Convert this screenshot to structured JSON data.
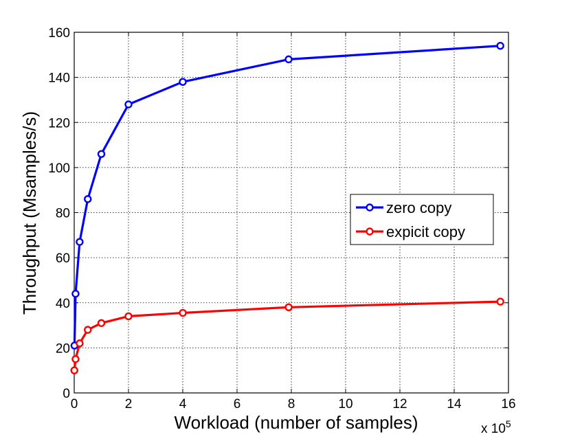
{
  "chart_data": {
    "type": "line",
    "title": "",
    "xlabel": "Workload (number of samples)",
    "ylabel": "Throughput (Msamples/s)",
    "x_multiplier_label": "x 10",
    "x_multiplier_exponent": "5",
    "xlim": [
      0,
      16
    ],
    "ylim": [
      0,
      160
    ],
    "xticks": [
      "0",
      "2",
      "4",
      "6",
      "8",
      "10",
      "12",
      "14",
      "16"
    ],
    "yticks": [
      "0",
      "20",
      "40",
      "60",
      "80",
      "100",
      "120",
      "140",
      "160"
    ],
    "grid": true,
    "legend_position": "center-right",
    "series": [
      {
        "name": "zero copy",
        "color": "#0000ff",
        "x": [
          0.01,
          0.05,
          0.2,
          0.5,
          1.0,
          2.0,
          4.0,
          7.9,
          15.7
        ],
        "y": [
          21,
          44,
          67,
          86,
          106,
          128,
          138,
          148,
          154
        ]
      },
      {
        "name": "expicit copy",
        "color": "#ff0000",
        "x": [
          0.005,
          0.05,
          0.2,
          0.5,
          1.0,
          2.0,
          4.0,
          7.9,
          15.7
        ],
        "y": [
          10,
          15,
          22,
          28,
          31,
          34,
          35.5,
          38,
          40.5
        ]
      }
    ]
  }
}
